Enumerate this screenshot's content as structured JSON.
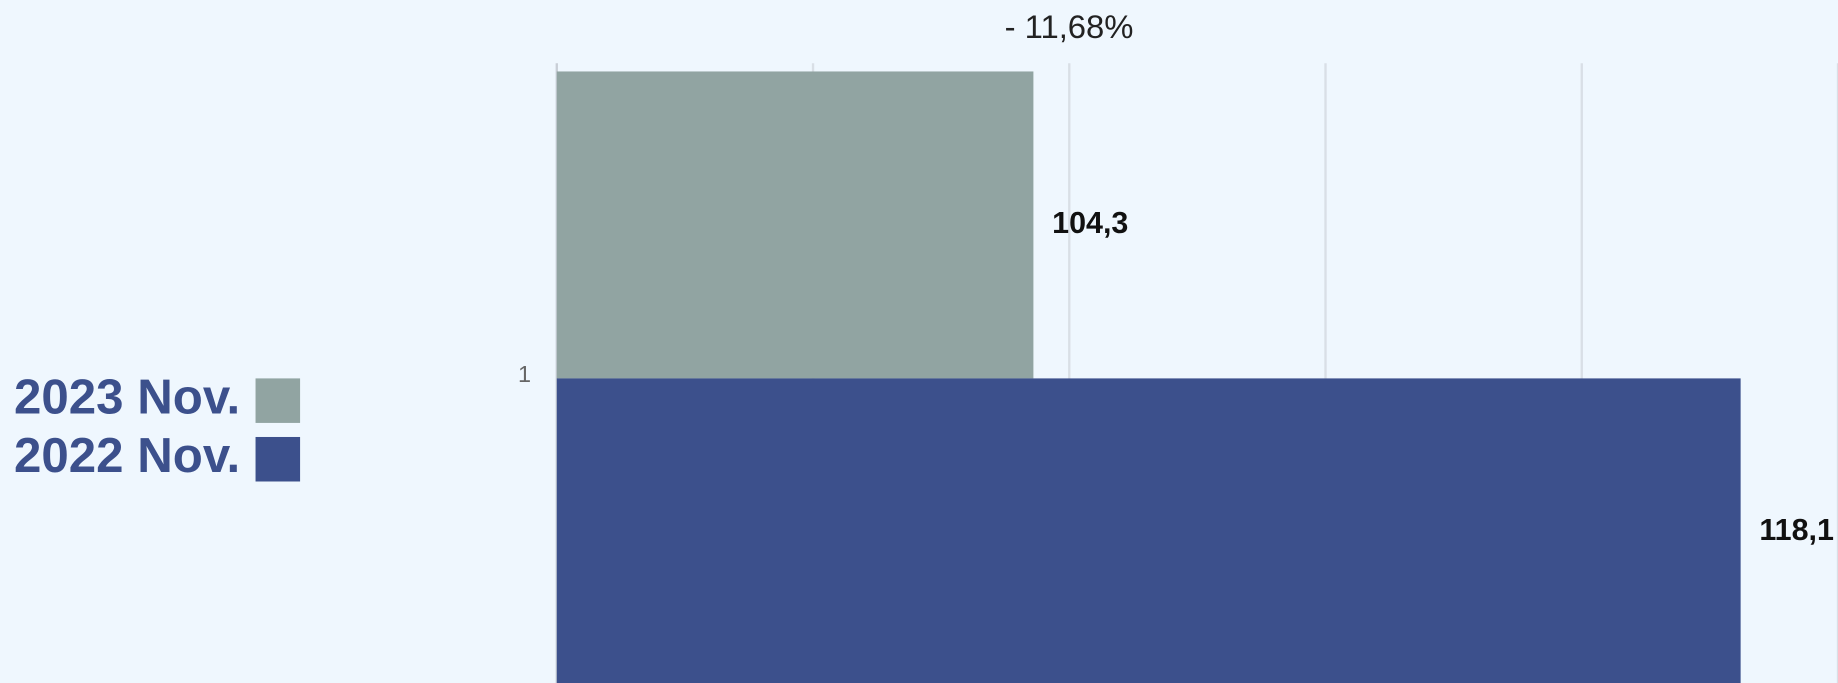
{
  "chart_data": {
    "type": "bar",
    "orientation": "horizontal",
    "annotation": "- 11,68%",
    "categories": [
      "1"
    ],
    "series": [
      {
        "name": "2023 Nov.",
        "color": "#91a4a2",
        "values": [
          104.3
        ],
        "value_labels": [
          "104,3"
        ]
      },
      {
        "name": "2022 Nov.",
        "color": "#3c508c",
        "values": [
          118.1
        ],
        "value_labels": [
          "118,1"
        ]
      }
    ],
    "xlim": [
      95,
      120
    ],
    "xticks": [
      95,
      100,
      105,
      110,
      115,
      120
    ],
    "grid": true,
    "legend": "left"
  }
}
